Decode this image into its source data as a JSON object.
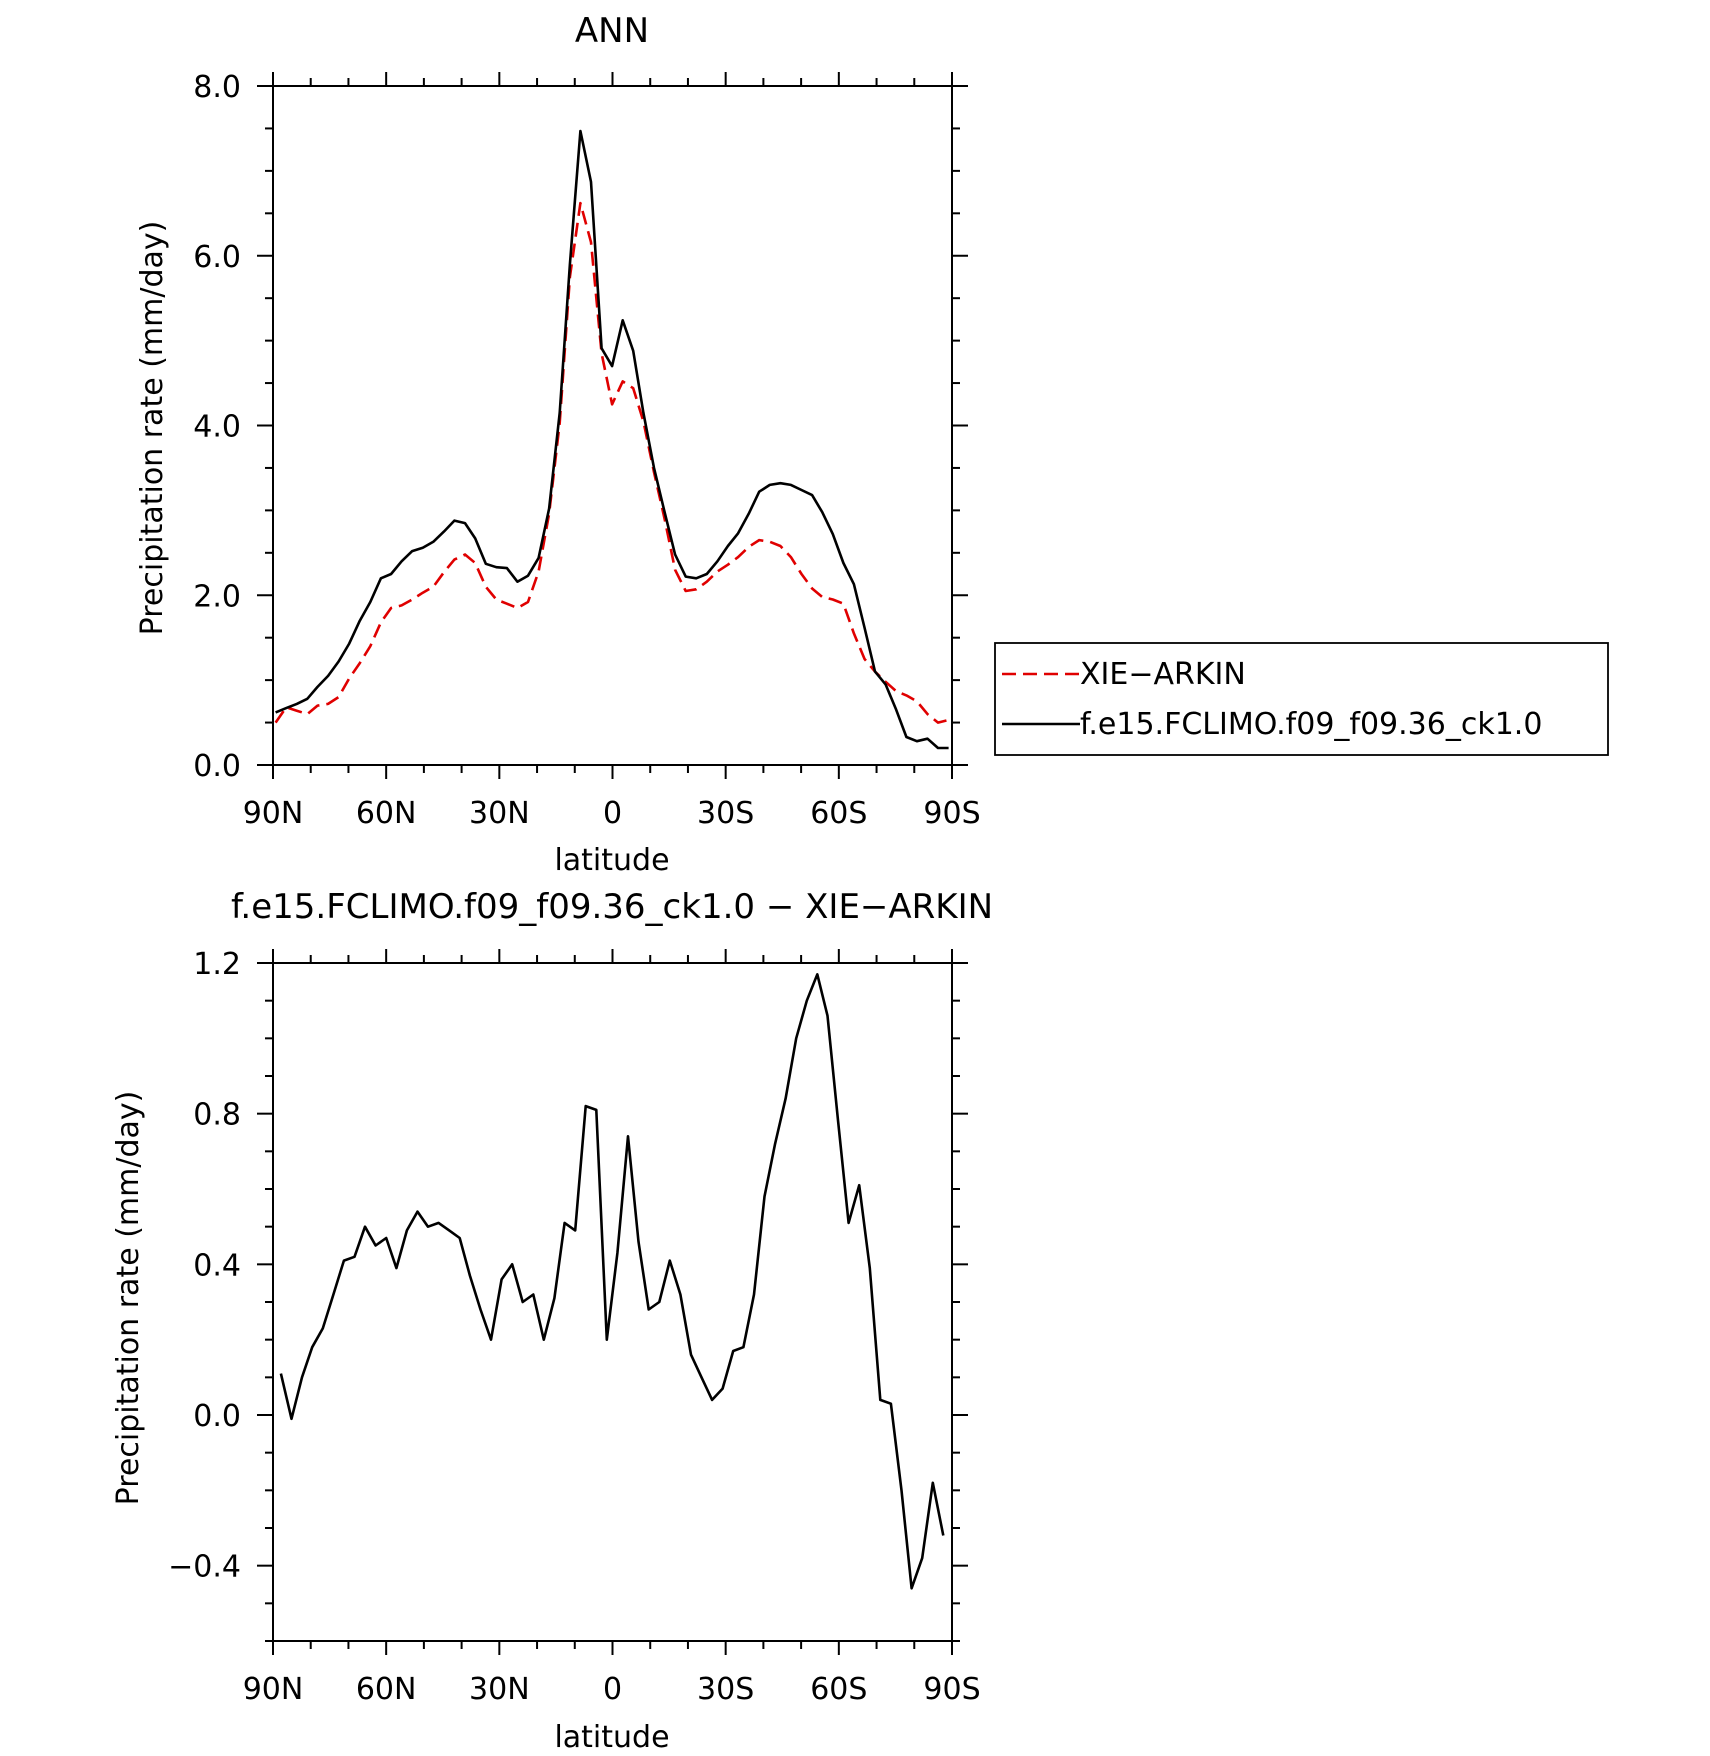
{
  "chart_data": [
    {
      "type": "line",
      "title": "ANN",
      "xlabel": "latitude",
      "ylabel": "Precipitation rate (mm/day)",
      "xlim": [
        -90,
        90
      ],
      "ylim": [
        0,
        8
      ],
      "yticks": [
        "0.0",
        "2.0",
        "4.0",
        "6.0",
        "8.0"
      ],
      "xticks": [
        "90N",
        "60N",
        "30N",
        "0",
        "30S",
        "60S",
        "90S"
      ],
      "legend_position": "right",
      "series": [
        {
          "name": "XIE−ARKIN",
          "color": "#e00000",
          "style": "dashed",
          "x": [
            -89.3,
            -86.5,
            -83.7,
            -80.9,
            -78.2,
            -75.4,
            -72.6,
            -69.8,
            -67.0,
            -64.2,
            -61.4,
            -58.7,
            -55.9,
            -53.1,
            -50.3,
            -47.5,
            -44.7,
            -41.9,
            -39.1,
            -36.4,
            -33.6,
            -30.8,
            -28.0,
            -25.2,
            -22.4,
            -19.6,
            -16.8,
            -14.0,
            -11.3,
            -8.5,
            -5.7,
            -2.9,
            -0.1,
            2.7,
            5.5,
            8.2,
            11.0,
            13.8,
            16.6,
            19.4,
            22.2,
            25.0,
            27.8,
            30.6,
            33.3,
            36.1,
            38.9,
            41.7,
            44.5,
            47.3,
            50.1,
            52.9,
            55.6,
            58.4,
            61.2,
            64.0,
            66.8,
            69.6,
            72.4,
            75.2,
            77.9,
            80.7,
            83.5,
            86.3,
            89.1
          ],
          "y": [
            0.5,
            0.68,
            0.64,
            0.6,
            0.7,
            0.72,
            0.8,
            1.02,
            1.2,
            1.4,
            1.68,
            1.85,
            1.88,
            1.95,
            2.03,
            2.1,
            2.27,
            2.42,
            2.48,
            2.38,
            2.1,
            1.95,
            1.9,
            1.85,
            1.92,
            2.28,
            2.96,
            4.03,
            5.75,
            6.62,
            6.16,
            4.85,
            4.25,
            4.52,
            4.44,
            4.05,
            3.45,
            2.9,
            2.3,
            2.05,
            2.07,
            2.16,
            2.28,
            2.36,
            2.45,
            2.57,
            2.65,
            2.63,
            2.58,
            2.45,
            2.25,
            2.08,
            1.98,
            1.95,
            1.9,
            1.55,
            1.25,
            1.1,
            0.98,
            0.87,
            0.82,
            0.75,
            0.6,
            0.5,
            0.53
          ]
        },
        {
          "name": "f.e15.FCLIMO.f09_f09.36_ck1.0",
          "color": "#000000",
          "style": "solid",
          "x": [
            -89.3,
            -86.5,
            -83.7,
            -80.9,
            -78.2,
            -75.4,
            -72.6,
            -69.8,
            -67.0,
            -64.2,
            -61.4,
            -58.7,
            -55.9,
            -53.1,
            -50.3,
            -47.5,
            -44.7,
            -41.9,
            -39.1,
            -36.4,
            -33.6,
            -30.8,
            -28.0,
            -25.2,
            -22.4,
            -19.6,
            -16.8,
            -14.0,
            -11.3,
            -8.5,
            -5.7,
            -2.9,
            -0.1,
            2.7,
            5.5,
            8.2,
            11.0,
            13.8,
            16.6,
            19.4,
            22.2,
            25.0,
            27.8,
            30.6,
            33.3,
            36.1,
            38.9,
            41.7,
            44.5,
            47.3,
            50.1,
            52.9,
            55.6,
            58.4,
            61.2,
            64.0,
            66.8,
            69.6,
            72.4,
            75.2,
            77.9,
            80.7,
            83.5,
            86.3,
            89.1
          ],
          "y": [
            0.62,
            0.67,
            0.72,
            0.78,
            0.92,
            1.05,
            1.22,
            1.43,
            1.7,
            1.92,
            2.2,
            2.25,
            2.4,
            2.52,
            2.56,
            2.63,
            2.75,
            2.88,
            2.85,
            2.67,
            2.37,
            2.33,
            2.32,
            2.16,
            2.23,
            2.44,
            3.02,
            4.15,
            5.9,
            7.47,
            6.87,
            4.91,
            4.7,
            5.24,
            4.88,
            4.15,
            3.5,
            2.98,
            2.48,
            2.22,
            2.2,
            2.25,
            2.4,
            2.58,
            2.73,
            2.96,
            3.22,
            3.3,
            3.32,
            3.3,
            3.24,
            3.18,
            2.98,
            2.72,
            2.38,
            2.13,
            1.62,
            1.1,
            0.95,
            0.65,
            0.33,
            0.28,
            0.31,
            0.2,
            0.2
          ]
        }
      ]
    },
    {
      "type": "line",
      "title": "f.e15.FCLIMO.f09_f09.36_ck1.0 − XIE−ARKIN",
      "xlabel": "latitude",
      "ylabel": "Precipitation rate (mm/day)",
      "xlim": [
        -90,
        90
      ],
      "ylim": [
        -0.6,
        1.2
      ],
      "yticks": [
        "−0.4",
        "0.0",
        "0.4",
        "0.8",
        "1.2"
      ],
      "xticks": [
        "90N",
        "60N",
        "30N",
        "0",
        "30S",
        "60S",
        "90S"
      ],
      "series": [
        {
          "color": "#000000",
          "style": "solid",
          "x": [
            -87.9,
            -85.1,
            -82.3,
            -79.6,
            -76.8,
            -74.0,
            -71.2,
            -68.4,
            -65.6,
            -62.8,
            -60.0,
            -57.3,
            -54.5,
            -51.7,
            -48.9,
            -46.1,
            -43.3,
            -40.5,
            -37.8,
            -35.0,
            -32.2,
            -29.4,
            -26.6,
            -23.8,
            -21.0,
            -18.2,
            -15.4,
            -12.7,
            -9.9,
            -7.1,
            -4.3,
            -1.5,
            1.3,
            4.1,
            6.9,
            9.6,
            12.4,
            15.2,
            18.0,
            20.8,
            23.6,
            26.4,
            29.2,
            32.0,
            34.7,
            37.5,
            40.3,
            43.1,
            45.9,
            48.7,
            51.5,
            54.3,
            57.0,
            59.8,
            62.6,
            65.4,
            68.2,
            71.0,
            73.8,
            76.6,
            79.3,
            82.1,
            84.9,
            87.7
          ],
          "y": [
            0.11,
            -0.01,
            0.1,
            0.18,
            0.23,
            0.32,
            0.41,
            0.42,
            0.5,
            0.45,
            0.47,
            0.39,
            0.49,
            0.54,
            0.5,
            0.51,
            0.49,
            0.47,
            0.37,
            0.28,
            0.2,
            0.36,
            0.4,
            0.3,
            0.32,
            0.2,
            0.31,
            0.51,
            0.49,
            0.82,
            0.81,
            0.2,
            0.43,
            0.74,
            0.46,
            0.28,
            0.3,
            0.41,
            0.32,
            0.16,
            0.1,
            0.04,
            0.07,
            0.17,
            0.18,
            0.32,
            0.58,
            0.72,
            0.84,
            1.0,
            1.1,
            1.17,
            1.06,
            0.78,
            0.51,
            0.61,
            0.39,
            0.04,
            0.03,
            -0.2,
            -0.46,
            -0.38,
            -0.18,
            -0.32
          ]
        }
      ]
    }
  ]
}
